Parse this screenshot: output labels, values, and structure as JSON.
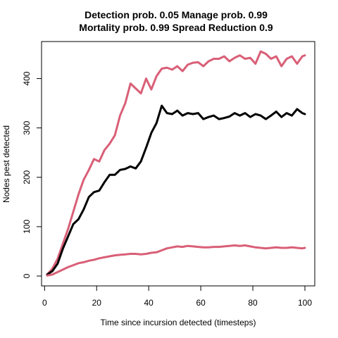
{
  "chart_data": {
    "type": "line",
    "title": "Detection prob. 0.05 Manage prob. 0.99",
    "subtitle": "Mortality prob. 0.99 Spread Reduction 0.9",
    "xlabel": "Time since incursion detected (timesteps)",
    "ylabel": "Nodes pest detected",
    "xlim": [
      1,
      100
    ],
    "ylim": [
      0,
      455
    ],
    "xticks": [
      "0",
      "20",
      "40",
      "60",
      "80",
      "100"
    ],
    "yticks": [
      "0",
      "100",
      "200",
      "300",
      "400"
    ],
    "grid": false,
    "x": [
      1,
      3,
      5,
      7,
      9,
      11,
      13,
      15,
      17,
      19,
      21,
      23,
      25,
      27,
      29,
      31,
      33,
      35,
      37,
      39,
      41,
      43,
      45,
      47,
      49,
      51,
      53,
      55,
      57,
      59,
      61,
      63,
      65,
      67,
      69,
      71,
      73,
      75,
      77,
      79,
      81,
      83,
      85,
      87,
      89,
      91,
      93,
      95,
      97,
      99,
      100
    ],
    "series": [
      {
        "color": "#d95f77",
        "values": [
          3,
          15,
          35,
          65,
          95,
          130,
          165,
          195,
          215,
          237,
          232,
          255,
          268,
          285,
          325,
          350,
          390,
          380,
          370,
          400,
          378,
          405,
          420,
          422,
          418,
          425,
          415,
          428,
          432,
          433,
          425,
          435,
          440,
          440,
          445,
          435,
          442,
          447,
          440,
          442,
          430,
          455,
          450,
          440,
          445,
          425,
          440,
          445,
          430,
          445,
          447
        ]
      },
      {
        "color": "#000000",
        "values": [
          3,
          10,
          25,
          55,
          80,
          105,
          115,
          135,
          160,
          170,
          173,
          190,
          205,
          205,
          215,
          217,
          222,
          218,
          232,
          260,
          290,
          310,
          345,
          330,
          328,
          335,
          325,
          330,
          328,
          330,
          318,
          322,
          325,
          318,
          320,
          323,
          330,
          325,
          330,
          322,
          328,
          325,
          318,
          325,
          333,
          322,
          330,
          325,
          338,
          330,
          328
        ]
      },
      {
        "color": "#d95f77",
        "values": [
          1,
          3,
          8,
          13,
          18,
          22,
          26,
          28,
          31,
          33,
          36,
          38,
          40,
          42,
          43,
          44,
          45,
          45,
          44,
          45,
          47,
          48,
          52,
          56,
          58,
          60,
          59,
          61,
          60,
          59,
          58,
          58,
          59,
          59,
          60,
          61,
          62,
          61,
          62,
          60,
          58,
          57,
          56,
          57,
          58,
          57,
          57,
          58,
          57,
          56,
          57
        ]
      }
    ]
  }
}
